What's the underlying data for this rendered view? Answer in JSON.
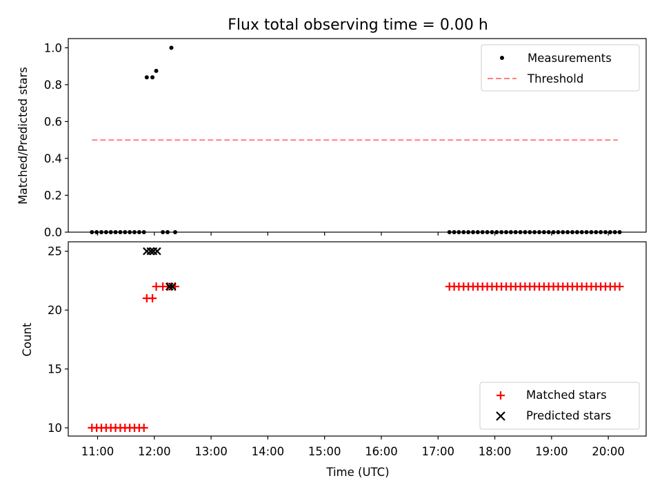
{
  "chart_data": [
    {
      "type": "scatter",
      "title": "Flux total observing time = 0.00 h",
      "xlabel": "",
      "ylabel": "Matched/Predicted stars",
      "xlim": [
        "10:29",
        "20:40"
      ],
      "ylim": [
        0,
        1.05
      ],
      "yticks": [
        "0.0",
        "0.2",
        "0.4",
        "0.6",
        "0.8",
        "1.0"
      ],
      "legend_position": "upper right",
      "threshold": {
        "name": "Threshold",
        "y": 0.5,
        "x_from": "10:54",
        "x_to": "20:10",
        "color": "#ff7f7f",
        "style": "dashed"
      },
      "series": [
        {
          "name": "Measurements",
          "color": "#000000",
          "marker": "dot",
          "points": [
            [
              "10:54",
              0
            ],
            [
              "10:59",
              0
            ],
            [
              "11:04",
              0
            ],
            [
              "11:09",
              0
            ],
            [
              "11:14",
              0
            ],
            [
              "11:19",
              0
            ],
            [
              "11:24",
              0
            ],
            [
              "11:29",
              0
            ],
            [
              "11:34",
              0
            ],
            [
              "11:39",
              0
            ],
            [
              "11:44",
              0
            ],
            [
              "11:49",
              0
            ],
            [
              "11:52",
              0.84
            ],
            [
              "11:58",
              0.84
            ],
            [
              "12:02",
              0.875
            ],
            [
              "12:09",
              0
            ],
            [
              "12:14",
              0
            ],
            [
              "12:18",
              1.0
            ],
            [
              "12:22",
              0
            ],
            [
              "17:12",
              0
            ],
            [
              "17:17",
              0
            ],
            [
              "17:22",
              0
            ],
            [
              "17:27",
              0
            ],
            [
              "17:32",
              0
            ],
            [
              "17:37",
              0
            ],
            [
              "17:42",
              0
            ],
            [
              "17:47",
              0
            ],
            [
              "17:52",
              0
            ],
            [
              "17:57",
              0
            ],
            [
              "18:02",
              0
            ],
            [
              "18:07",
              0
            ],
            [
              "18:12",
              0
            ],
            [
              "18:17",
              0
            ],
            [
              "18:22",
              0
            ],
            [
              "18:27",
              0
            ],
            [
              "18:32",
              0
            ],
            [
              "18:37",
              0
            ],
            [
              "18:42",
              0
            ],
            [
              "18:47",
              0
            ],
            [
              "18:52",
              0
            ],
            [
              "18:57",
              0
            ],
            [
              "19:02",
              0
            ],
            [
              "19:07",
              0
            ],
            [
              "19:12",
              0
            ],
            [
              "19:17",
              0
            ],
            [
              "19:22",
              0
            ],
            [
              "19:27",
              0
            ],
            [
              "19:32",
              0
            ],
            [
              "19:37",
              0
            ],
            [
              "19:42",
              0
            ],
            [
              "19:47",
              0
            ],
            [
              "19:52",
              0
            ],
            [
              "19:57",
              0
            ],
            [
              "20:02",
              0
            ],
            [
              "20:07",
              0
            ],
            [
              "20:12",
              0
            ]
          ]
        }
      ]
    },
    {
      "type": "scatter",
      "title": "",
      "xlabel": "Time (UTC)",
      "ylabel": "Count",
      "xlim": [
        "10:29",
        "20:40"
      ],
      "ylim": [
        9.3,
        25.8
      ],
      "xticks": [
        "11:00",
        "12:00",
        "13:00",
        "14:00",
        "15:00",
        "16:00",
        "17:00",
        "18:00",
        "19:00",
        "20:00"
      ],
      "yticks": [
        "10",
        "15",
        "20",
        "25"
      ],
      "legend_position": "lower right",
      "series": [
        {
          "name": "Matched stars",
          "color": "#ff0000",
          "marker": "plus",
          "points": [
            [
              "10:54",
              10
            ],
            [
              "10:59",
              10
            ],
            [
              "11:04",
              10
            ],
            [
              "11:09",
              10
            ],
            [
              "11:14",
              10
            ],
            [
              "11:19",
              10
            ],
            [
              "11:24",
              10
            ],
            [
              "11:29",
              10
            ],
            [
              "11:34",
              10
            ],
            [
              "11:39",
              10
            ],
            [
              "11:44",
              10
            ],
            [
              "11:49",
              10
            ],
            [
              "11:52",
              21
            ],
            [
              "11:58",
              21
            ],
            [
              "12:02",
              22
            ],
            [
              "12:09",
              22
            ],
            [
              "12:14",
              22
            ],
            [
              "12:18",
              22
            ],
            [
              "12:22",
              22
            ],
            [
              "17:12",
              22
            ],
            [
              "17:17",
              22
            ],
            [
              "17:22",
              22
            ],
            [
              "17:27",
              22
            ],
            [
              "17:32",
              22
            ],
            [
              "17:37",
              22
            ],
            [
              "17:42",
              22
            ],
            [
              "17:47",
              22
            ],
            [
              "17:52",
              22
            ],
            [
              "17:57",
              22
            ],
            [
              "18:02",
              22
            ],
            [
              "18:07",
              22
            ],
            [
              "18:12",
              22
            ],
            [
              "18:17",
              22
            ],
            [
              "18:22",
              22
            ],
            [
              "18:27",
              22
            ],
            [
              "18:32",
              22
            ],
            [
              "18:37",
              22
            ],
            [
              "18:42",
              22
            ],
            [
              "18:47",
              22
            ],
            [
              "18:52",
              22
            ],
            [
              "18:57",
              22
            ],
            [
              "19:02",
              22
            ],
            [
              "19:07",
              22
            ],
            [
              "19:12",
              22
            ],
            [
              "19:17",
              22
            ],
            [
              "19:22",
              22
            ],
            [
              "19:27",
              22
            ],
            [
              "19:32",
              22
            ],
            [
              "19:37",
              22
            ],
            [
              "19:42",
              22
            ],
            [
              "19:47",
              22
            ],
            [
              "19:52",
              22
            ],
            [
              "19:57",
              22
            ],
            [
              "20:02",
              22
            ],
            [
              "20:07",
              22
            ],
            [
              "20:12",
              22
            ]
          ]
        },
        {
          "name": "Predicted stars",
          "color": "#000000",
          "marker": "x",
          "points": [
            [
              "11:52",
              25
            ],
            [
              "11:56",
              25
            ],
            [
              "11:59",
              25
            ],
            [
              "12:03",
              25
            ],
            [
              "12:16",
              22
            ],
            [
              "12:19",
              22
            ]
          ]
        }
      ]
    }
  ]
}
